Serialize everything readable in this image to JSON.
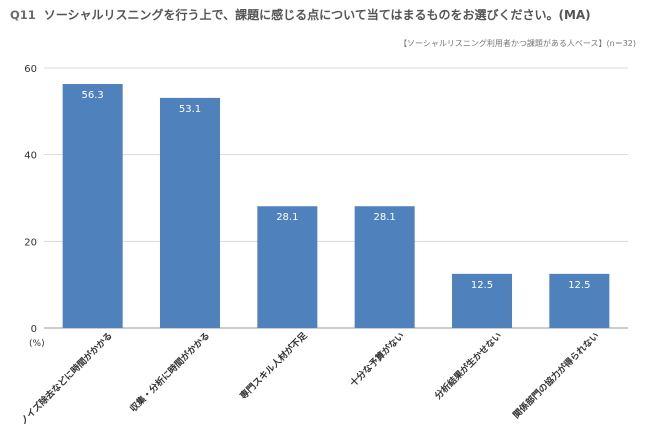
{
  "header": {
    "q_number": "Q11",
    "question": "ソーシャルリスニングを行う上で、課題に感じる点について当てはまるものをお選びください。(MA)",
    "base_note": "【ソーシャルリスニング利用者かつ課題がある人ベース】(n＝32)"
  },
  "chart_data": {
    "type": "bar",
    "categories": [
      "ノイズ除去などに時間がかかる",
      "収集・分析に時間がかかる",
      "専門スキル人材が不足",
      "十分な予算がない",
      "分析結果が生かせない",
      "関係部門の協力が得られない"
    ],
    "values": [
      56.3,
      53.1,
      28.1,
      28.1,
      12.5,
      12.5
    ],
    "data_labels": [
      "56.3",
      "53.1",
      "28.1",
      "28.1",
      "12.5",
      "12.5"
    ],
    "ylim": [
      0,
      60
    ],
    "yticks": [
      0,
      20,
      40,
      60
    ],
    "unit_label": "(%)",
    "grid": true,
    "bar_color": "#4f81bd",
    "grid_color": "#d9d9d9"
  }
}
